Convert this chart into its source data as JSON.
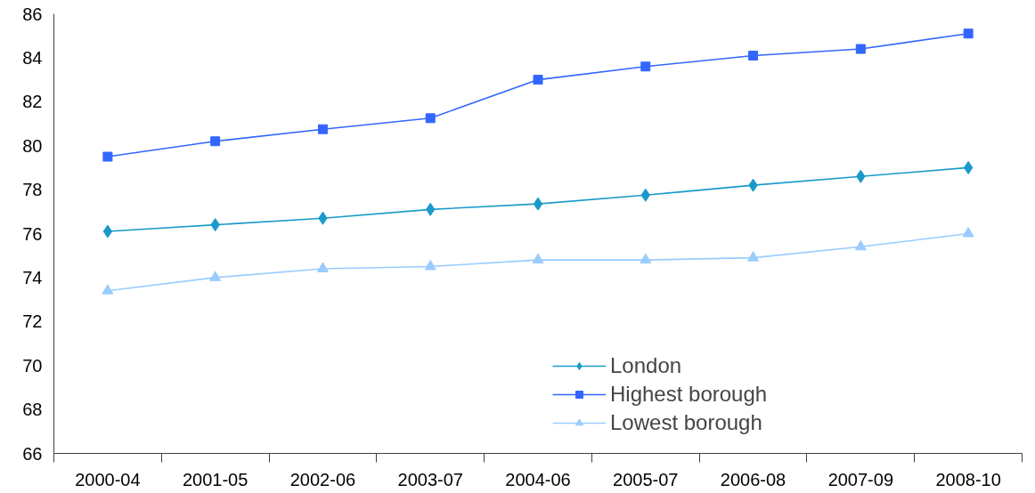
{
  "chart_data": {
    "type": "line",
    "categories": [
      "2000-04",
      "2001-05",
      "2002-06",
      "2003-07",
      "2004-06",
      "2005-07",
      "2006-08",
      "2007-09",
      "2008-10"
    ],
    "ylim": [
      66,
      86
    ],
    "yticks": [
      66,
      68,
      70,
      72,
      74,
      76,
      78,
      80,
      82,
      84,
      86
    ],
    "grid": false,
    "legend": "bottom",
    "line_style": "solid",
    "series": [
      {
        "name": "London",
        "color": "#1a9ac9",
        "marker": "diamond",
        "values": [
          76.1,
          76.4,
          76.7,
          77.1,
          77.35,
          77.75,
          78.2,
          78.6,
          79.0
        ]
      },
      {
        "name": "Highest borough",
        "color": "#3366ff",
        "marker": "square",
        "values": [
          79.5,
          80.2,
          80.75,
          81.25,
          83.0,
          83.6,
          84.1,
          84.4,
          85.1
        ]
      },
      {
        "name": "Lowest borough",
        "color": "#99ccff",
        "marker": "triangle",
        "values": [
          73.4,
          74.0,
          74.4,
          74.5,
          74.8,
          74.8,
          74.9,
          75.4,
          76.0
        ]
      }
    ]
  }
}
